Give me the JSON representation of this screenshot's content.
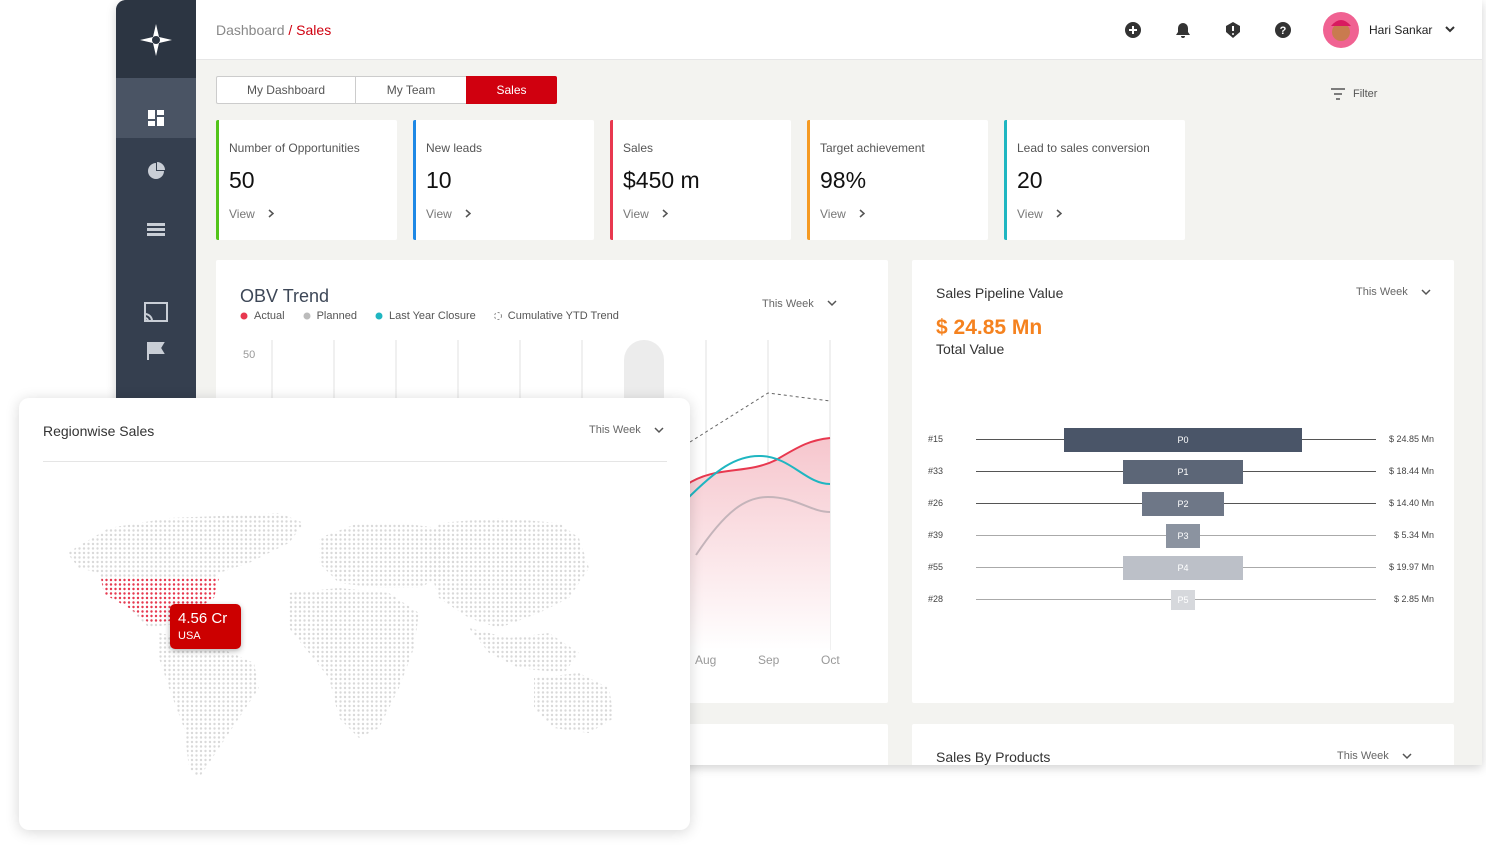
{
  "header": {
    "breadcrumb": {
      "parent": "Dashboard",
      "current": "/ Sales"
    },
    "user": "Hari Sankar"
  },
  "tabs": [
    "My Dashboard",
    "My Team",
    "Sales"
  ],
  "filter": "Filter",
  "kpis": [
    {
      "label": "Number of Opportunities",
      "value": "50",
      "link": "View",
      "color": "#52c41a"
    },
    {
      "label": "New leads",
      "value": "10",
      "link": "View",
      "color": "#1e88e5"
    },
    {
      "label": "Sales",
      "value": "$450 m",
      "link": "View",
      "color": "#e8384f"
    },
    {
      "label": "Target achievement",
      "value": "98%",
      "link": "View",
      "color": "#f59a23"
    },
    {
      "label": "Lead to sales conversion",
      "value": "20",
      "link": "View",
      "color": "#1fb6c1"
    }
  ],
  "obv_trend": {
    "title": "OBV Trend",
    "period": "This Week",
    "legend": [
      "Actual",
      "Planned",
      "Last Year Closure",
      "Cumulative YTD Trend"
    ],
    "y_label": "50",
    "x_labels": [
      "Aug",
      "Sep",
      "Oct"
    ]
  },
  "pipeline": {
    "title": "Sales Pipeline Value",
    "period": "This Week",
    "total": "$ 24.85 Mn",
    "total_label": "Total Value",
    "rows": [
      {
        "id": "#15",
        "stage": "P0",
        "value": "$ 24.85 Mn"
      },
      {
        "id": "#33",
        "stage": "P1",
        "value": "$ 18.44 Mn"
      },
      {
        "id": "#26",
        "stage": "P2",
        "value": "$ 14.40 Mn"
      },
      {
        "id": "#39",
        "stage": "P3",
        "value": "$ 5.34 Mn"
      },
      {
        "id": "#55",
        "stage": "P4",
        "value": "$ 19.97 Mn"
      },
      {
        "id": "#28",
        "stage": "P5",
        "value": "$ 2.85 Mn"
      }
    ]
  },
  "sales_by_products": {
    "title": "Sales By Products",
    "period": "This Week"
  },
  "regionwise": {
    "title": "Regionwise Sales",
    "period": "This Week",
    "tooltip": {
      "value": "4.56 Cr",
      "region": "USA"
    }
  }
}
